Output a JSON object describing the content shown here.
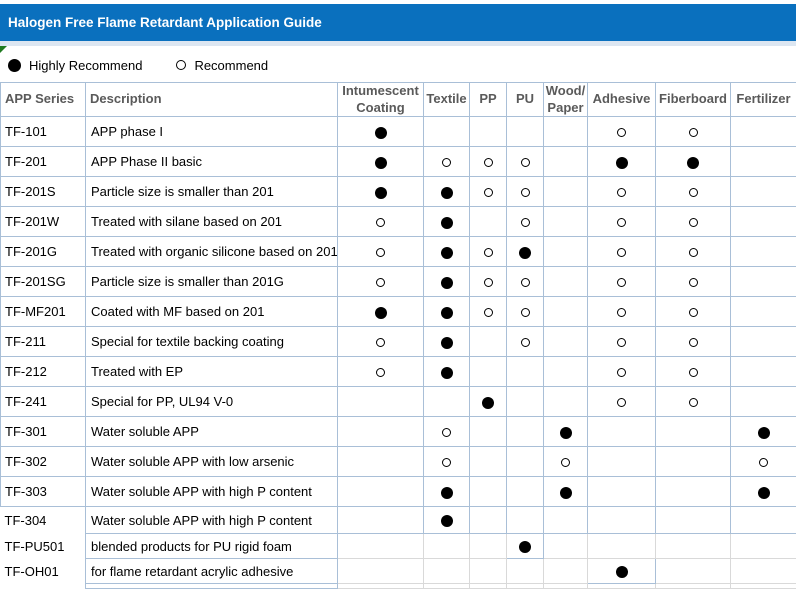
{
  "title": "Halogen Free Flame Retardant Application Guide",
  "legend": {
    "highly_label": "Highly Recommend",
    "recommend_label": "Recommend",
    "highly_symbol": "filled-circle",
    "recommend_symbol": "hollow-circle"
  },
  "colors": {
    "title_bar": "#0a70be",
    "title_text": "#ffffff",
    "sub_strip": "#dce6f1",
    "grid_blue": "#a9bfd7",
    "grid_gray": "#d9d9d9",
    "header_text": "#5a5a5a",
    "body_text": "#000000",
    "corner_marker_green": "#1f7a1f",
    "dot": "#000000"
  },
  "table": {
    "mark_legend": {
      "H": "Highly Recommend",
      "R": "Recommend",
      "": "none"
    },
    "columns": [
      {
        "key": "series",
        "label": "APP Series"
      },
      {
        "key": "description",
        "label": "Description"
      },
      {
        "key": "intumescent-coating",
        "label": "Intumescent\nCoating"
      },
      {
        "key": "textile",
        "label": "Textile"
      },
      {
        "key": "pp",
        "label": "PP"
      },
      {
        "key": "pu",
        "label": "PU"
      },
      {
        "key": "wood-paper",
        "label": "Wood/\nPaper"
      },
      {
        "key": "adhesive",
        "label": "Adhesive"
      },
      {
        "key": "fiberboard",
        "label": "Fiberboard"
      },
      {
        "key": "fertilizer",
        "label": "Fertilizer"
      }
    ],
    "rows": [
      {
        "series": "TF-101",
        "description": "APP phase I",
        "marks": [
          "H",
          "",
          "",
          "",
          "",
          "R",
          "R",
          ""
        ]
      },
      {
        "series": "TF-201",
        "description": "APP Phase II basic",
        "marks": [
          "H",
          "R",
          "R",
          "R",
          "",
          "H",
          "H",
          ""
        ]
      },
      {
        "series": "TF-201S",
        "description": "Particle size is smaller than 201",
        "marks": [
          "H",
          "H",
          "R",
          "R",
          "",
          "R",
          "R",
          ""
        ]
      },
      {
        "series": "TF-201W",
        "description": "Treated with silane based on 201",
        "marks": [
          "R",
          "H",
          "",
          "R",
          "",
          "R",
          "R",
          ""
        ]
      },
      {
        "series": "TF-201G",
        "description": "Treated with organic silicone based on 201",
        "marks": [
          "R",
          "H",
          "R",
          "H",
          "",
          "R",
          "R",
          ""
        ]
      },
      {
        "series": "TF-201SG",
        "description": "Particle size is smaller than 201G",
        "marks": [
          "R",
          "H",
          "R",
          "R",
          "",
          "R",
          "R",
          ""
        ]
      },
      {
        "series": "TF-MF201",
        "description": "Coated with MF based on 201",
        "marks": [
          "H",
          "H",
          "R",
          "R",
          "",
          "R",
          "R",
          ""
        ]
      },
      {
        "series": "TF-211",
        "description": "Special for textile backing coating",
        "marks": [
          "R",
          "H",
          "",
          "R",
          "",
          "R",
          "R",
          ""
        ]
      },
      {
        "series": "TF-212",
        "description": "Treated with EP",
        "marks": [
          "R",
          "H",
          "",
          "",
          "",
          "R",
          "R",
          ""
        ]
      },
      {
        "series": "TF-241",
        "description": "Special for PP, UL94 V-0",
        "marks": [
          "",
          "",
          "H",
          "",
          "",
          "R",
          "R",
          ""
        ]
      },
      {
        "series": "TF-301",
        "description": "Water soluble APP",
        "marks": [
          "",
          "R",
          "",
          "",
          "H",
          "",
          "",
          "H"
        ]
      },
      {
        "series": "TF-302",
        "description": "Water soluble APP with low arsenic",
        "marks": [
          "",
          "R",
          "",
          "",
          "R",
          "",
          "",
          "R"
        ]
      },
      {
        "series": "TF-303",
        "description": "Water soluble APP with high P content",
        "marks": [
          "",
          "H",
          "",
          "",
          "H",
          "",
          "",
          "H"
        ]
      },
      {
        "series": "TF-304",
        "description": "Water soluble APP with high P content",
        "marks": [
          "",
          "H",
          "",
          "",
          "",
          "",
          "",
          ""
        ]
      },
      {
        "series": "TF-PU501",
        "description": "blended products for PU rigid foam",
        "marks": [
          "",
          "",
          "",
          "H",
          "",
          "",
          "",
          ""
        ]
      },
      {
        "series": "TF-OH01",
        "description": "for flame retardant acrylic adhesive",
        "marks": [
          "",
          "",
          "",
          "",
          "",
          "H",
          "",
          ""
        ]
      }
    ]
  }
}
